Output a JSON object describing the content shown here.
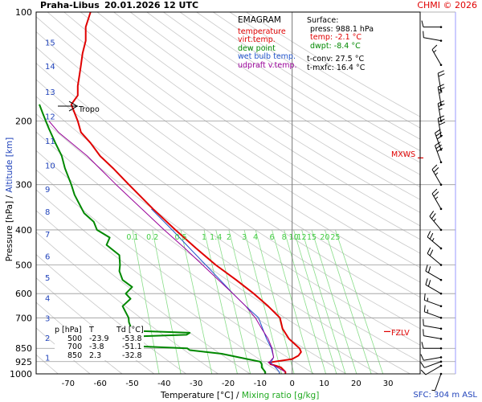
{
  "header": {
    "station": "Praha-Libus",
    "datetime": "20.01.2026 12 UTC",
    "credit": "CHMI © 2026"
  },
  "legend": {
    "title": "EMAGRAM",
    "items": [
      {
        "label": "temperature",
        "color": "#e00000"
      },
      {
        "label": "virt.temp.",
        "color": "#e00000"
      },
      {
        "label": "dew point",
        "color": "#008800"
      },
      {
        "label": "wet bulb temp.",
        "color": "#2255cc"
      },
      {
        "label": "udpraft v.temp.",
        "color": "#990099"
      }
    ]
  },
  "surface": {
    "title": "Surface:",
    "press": "press: 988.1 hPa",
    "temp": "temp: -2.1 °C",
    "dwpt": "dwpt: -8.4 °C",
    "tconv": "t-conv: 27.5 °C",
    "tmxfc": "t-mxfc: 16.4 °C"
  },
  "table": {
    "headers": [
      "p [hPa]",
      "T",
      "Td [°C]"
    ],
    "rows": [
      [
        "500",
        "-23.9",
        "-53.8"
      ],
      [
        "700",
        "-3.8",
        "-51.1"
      ],
      [
        "850",
        "2.3",
        "-32.8"
      ]
    ]
  },
  "annotations": {
    "tropo": "Tropo",
    "mxws": "MXWS",
    "fzlv": "FZLV",
    "sfc": "SFC: 304 m ASL"
  },
  "chart_data": {
    "type": "line",
    "xlabel": "Temperature [°C]",
    "xlabel_sep": "/",
    "xlabel2": "Mixing ratio [g/kg]",
    "ylabel": "Pressure [hPa]",
    "ylabel_sep": "/",
    "ylabel2": "Altitude [km]",
    "xlim": [
      -80,
      40
    ],
    "x_ticks": [
      -70,
      -60,
      -50,
      -40,
      -30,
      -20,
      -10,
      0,
      10,
      20,
      30
    ],
    "y_scale": "log",
    "ylim": [
      1000,
      100
    ],
    "pressure_ticks": [
      100,
      200,
      300,
      400,
      500,
      600,
      700,
      850,
      925,
      1000
    ],
    "altitude_ticks_km": [
      {
        "label": "1",
        "p": 900
      },
      {
        "label": "2",
        "p": 795
      },
      {
        "label": "3",
        "p": 700
      },
      {
        "label": "4",
        "p": 617
      },
      {
        "label": "5",
        "p": 541
      },
      {
        "label": "6",
        "p": 472
      },
      {
        "label": "7",
        "p": 411
      },
      {
        "label": "8",
        "p": 356
      },
      {
        "label": "9",
        "p": 308
      },
      {
        "label": "10",
        "p": 265
      },
      {
        "label": "11",
        "p": 227
      },
      {
        "label": "12",
        "p": 194
      },
      {
        "label": "13",
        "p": 166
      },
      {
        "label": "14",
        "p": 141
      },
      {
        "label": "15",
        "p": 121
      }
    ],
    "mixing_ratio_labels": [
      "0.1",
      "0.2",
      "0.5",
      "1",
      "1.4",
      "2",
      "3",
      "4",
      "6",
      "8",
      "10",
      "12",
      "15",
      "20",
      "25"
    ],
    "mixing_ratio_values": [
      0.1,
      0.2,
      0.5,
      1,
      1.4,
      2,
      3,
      4,
      6,
      8,
      10,
      12,
      15,
      20,
      25
    ],
    "series": [
      {
        "name": "temperature",
        "color": "#e00000",
        "points": [
          [
            1000,
            -2.1
          ],
          [
            988,
            -2.1
          ],
          [
            960,
            -3.5
          ],
          [
            950,
            -5
          ],
          [
            940,
            -6.8
          ],
          [
            930,
            -7
          ],
          [
            925,
            -5.5
          ],
          [
            910,
            0
          ],
          [
            890,
            2
          ],
          [
            870,
            2.8
          ],
          [
            850,
            2.3
          ],
          [
            800,
            -1
          ],
          [
            750,
            -3
          ],
          [
            700,
            -3.8
          ],
          [
            650,
            -7.5
          ],
          [
            600,
            -12
          ],
          [
            550,
            -17.5
          ],
          [
            500,
            -23.9
          ],
          [
            450,
            -30
          ],
          [
            400,
            -36.5
          ],
          [
            350,
            -43.5
          ],
          [
            300,
            -51
          ],
          [
            270,
            -56
          ],
          [
            250,
            -60
          ],
          [
            230,
            -63
          ],
          [
            215,
            -66
          ],
          [
            200,
            -67
          ],
          [
            190,
            -68
          ],
          [
            180,
            -69
          ],
          [
            170,
            -67
          ],
          [
            160,
            -67
          ],
          [
            150,
            -66.5
          ],
          [
            140,
            -66
          ],
          [
            130,
            -65.5
          ],
          [
            120,
            -64.5
          ],
          [
            110,
            -64.5
          ],
          [
            100,
            -63
          ]
        ]
      },
      {
        "name": "dew point",
        "color": "#008800",
        "points": [
          [
            1000,
            -8.4
          ],
          [
            988,
            -8.4
          ],
          [
            960,
            -9.5
          ],
          [
            940,
            -9.5
          ],
          [
            925,
            -10
          ],
          [
            910,
            -14
          ],
          [
            880,
            -22
          ],
          [
            870,
            -27
          ],
          [
            860,
            -32
          ],
          [
            850,
            -32.8
          ],
          [
            840,
            -47
          ],
          [
            830,
            -55
          ],
          [
            810,
            -57
          ],
          [
            790,
            -52
          ],
          [
            780,
            -33
          ],
          [
            770,
            -32
          ],
          [
            760,
            -50
          ],
          [
            720,
            -51
          ],
          [
            700,
            -51.1
          ],
          [
            650,
            -53
          ],
          [
            620,
            -50.5
          ],
          [
            600,
            -52
          ],
          [
            575,
            -50
          ],
          [
            550,
            -53
          ],
          [
            520,
            -54
          ],
          [
            500,
            -53.8
          ],
          [
            470,
            -54
          ],
          [
            440,
            -58
          ],
          [
            420,
            -57
          ],
          [
            400,
            -61
          ],
          [
            380,
            -62
          ],
          [
            360,
            -65
          ],
          [
            320,
            -68
          ],
          [
            300,
            -69
          ],
          [
            270,
            -71
          ],
          [
            250,
            -72
          ],
          [
            230,
            -74
          ],
          [
            210,
            -76
          ],
          [
            200,
            -77
          ],
          [
            190,
            -78
          ],
          [
            180,
            -79
          ]
        ]
      },
      {
        "name": "wet bulb temp.",
        "color": "#2255cc",
        "points": [
          [
            1000,
            -4
          ],
          [
            988,
            -4
          ],
          [
            960,
            -5.2
          ],
          [
            930,
            -6.8
          ],
          [
            925,
            -6.5
          ],
          [
            900,
            -5.8
          ],
          [
            850,
            -6.5
          ],
          [
            800,
            -8
          ],
          [
            750,
            -9.2
          ],
          [
            700,
            -10.5
          ],
          [
            650,
            -14.5
          ],
          [
            600,
            -18.5
          ],
          [
            550,
            -22.5
          ],
          [
            500,
            -27
          ],
          [
            450,
            -32
          ],
          [
            400,
            -37.5
          ],
          [
            350,
            -44
          ]
        ]
      },
      {
        "name": "udpraft v.temp.",
        "color": "#990099",
        "points": [
          [
            988,
            -2.1
          ],
          [
            930,
            -7.5
          ],
          [
            925,
            -7
          ],
          [
            900,
            -5.8
          ],
          [
            850,
            -6.3
          ],
          [
            800,
            -7.5
          ],
          [
            750,
            -9.5
          ],
          [
            700,
            -11.5
          ],
          [
            650,
            -14.5
          ],
          [
            600,
            -18.5
          ],
          [
            550,
            -23
          ],
          [
            500,
            -28
          ],
          [
            450,
            -33.5
          ],
          [
            400,
            -40
          ],
          [
            350,
            -47
          ],
          [
            300,
            -55
          ],
          [
            250,
            -64
          ],
          [
            230,
            -69
          ],
          [
            215,
            -73
          ],
          [
            200,
            -76
          ]
        ]
      }
    ],
    "wind_barbs": [
      {
        "p": 1000,
        "dir": 200,
        "spd_kt": 5
      },
      {
        "p": 950,
        "dir": 240,
        "spd_kt": 10
      },
      {
        "p": 925,
        "dir": 250,
        "spd_kt": 10
      },
      {
        "p": 900,
        "dir": 260,
        "spd_kt": 10
      },
      {
        "p": 850,
        "dir": 270,
        "spd_kt": 10
      },
      {
        "p": 800,
        "dir": 280,
        "spd_kt": 10
      },
      {
        "p": 750,
        "dir": 280,
        "spd_kt": 10
      },
      {
        "p": 700,
        "dir": 290,
        "spd_kt": 15
      },
      {
        "p": 650,
        "dir": 290,
        "spd_kt": 15
      },
      {
        "p": 600,
        "dir": 300,
        "spd_kt": 20
      },
      {
        "p": 550,
        "dir": 300,
        "spd_kt": 20
      },
      {
        "p": 500,
        "dir": 310,
        "spd_kt": 20
      },
      {
        "p": 450,
        "dir": 310,
        "spd_kt": 25
      },
      {
        "p": 400,
        "dir": 320,
        "spd_kt": 25
      },
      {
        "p": 350,
        "dir": 330,
        "spd_kt": 25
      },
      {
        "p": 300,
        "dir": 330,
        "spd_kt": 25
      },
      {
        "p": 260,
        "dir": 340,
        "spd_kt": 30
      },
      {
        "p": 240,
        "dir": 340,
        "spd_kt": 30
      },
      {
        "p": 220,
        "dir": 350,
        "spd_kt": 30
      },
      {
        "p": 200,
        "dir": 350,
        "spd_kt": 25
      },
      {
        "p": 180,
        "dir": 350,
        "spd_kt": 25
      },
      {
        "p": 165,
        "dir": 350,
        "spd_kt": 20
      },
      {
        "p": 140,
        "dir": 330,
        "spd_kt": 15
      },
      {
        "p": 120,
        "dir": 280,
        "spd_kt": 10
      },
      {
        "p": 110,
        "dir": 270,
        "spd_kt": 10
      }
    ],
    "levels": {
      "tropopause_hpa": 182,
      "mxws_hpa": 253,
      "fzlv_hpa": 764,
      "fzlv_temp": 0
    }
  }
}
